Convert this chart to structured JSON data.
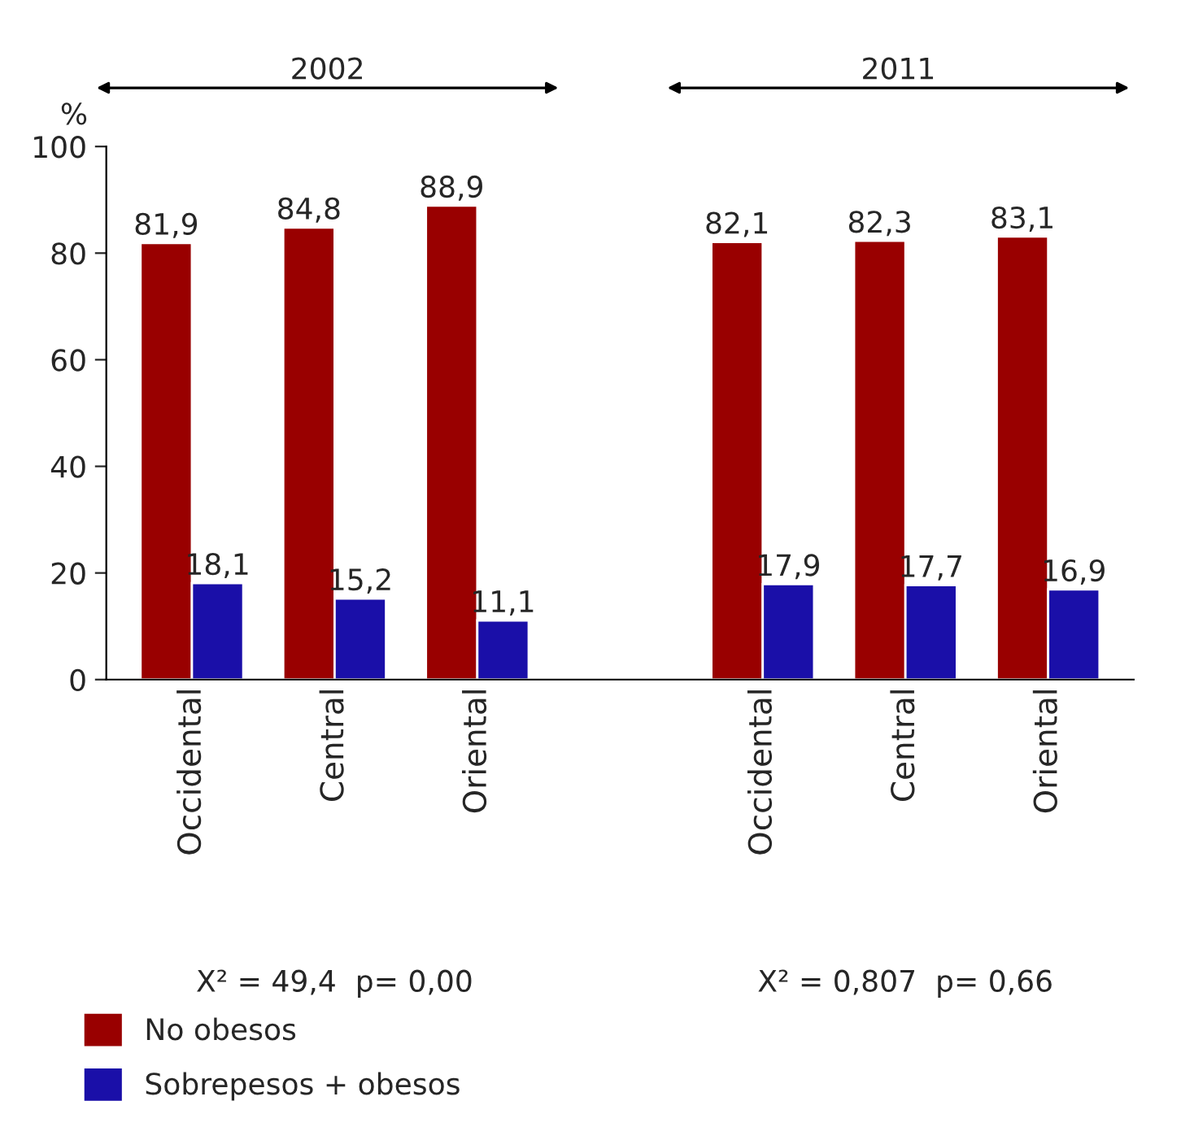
{
  "chart_data": {
    "type": "bar",
    "ylabel": "%",
    "categories": [
      "Occidental",
      "Central",
      "Oriental",
      null,
      "Occidental",
      "Central",
      "Oriental"
    ],
    "series": [
      {
        "name": "No obesos",
        "color": "#990000",
        "values": [
          81.9,
          84.8,
          88.9,
          null,
          82.1,
          82.3,
          83.1
        ],
        "value_labels": [
          "81,9",
          "84,8",
          "88,9",
          null,
          "82,1",
          "82,3",
          "83,1"
        ]
      },
      {
        "name": "Sobrepesos + obesos",
        "color": "#1a0fa8",
        "values": [
          18.1,
          15.2,
          11.1,
          null,
          17.9,
          17.7,
          16.9
        ],
        "value_labels": [
          "18,1",
          "15,2",
          "11,1",
          null,
          "17,9",
          "17,7",
          "16,9"
        ]
      }
    ],
    "ylim": [
      0,
      100
    ],
    "yticks": [
      0,
      20,
      40,
      60,
      80,
      100
    ],
    "grid": false,
    "legend": "bottom left",
    "annotations": [
      "2002",
      "2011",
      "X² = 49,4  p= 0,00",
      "X² = 0,807  p= 0,66"
    ]
  }
}
